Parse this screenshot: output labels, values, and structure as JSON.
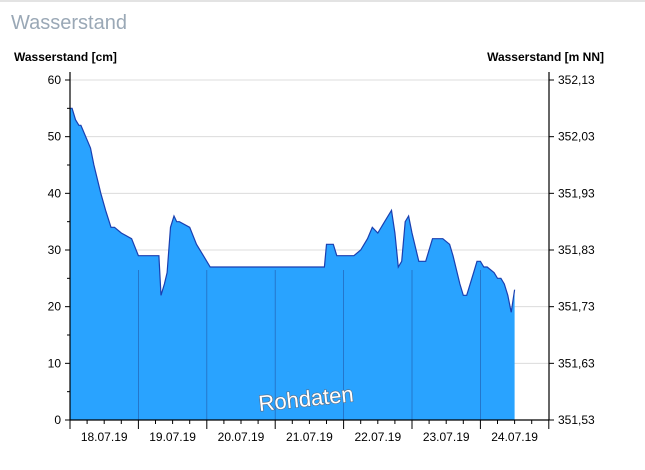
{
  "page": {
    "title": "Wasserstand"
  },
  "chart_data": {
    "type": "area",
    "title": "Wasserstand",
    "ylabel_left": "Wasserstand [cm]",
    "ylabel_right": "Wasserstand [m NN]",
    "annotation": "Rohdaten",
    "ylim_left": [
      0,
      60
    ],
    "yticks_left": [
      0,
      10,
      20,
      30,
      40,
      50,
      60
    ],
    "ylim_right": [
      351.53,
      352.13
    ],
    "yticks_right": [
      "351,53",
      "351,63",
      "351,73",
      "351,83",
      "351,93",
      "352,03",
      "352,13"
    ],
    "xlim_days": [
      0,
      7
    ],
    "xtick_labels": [
      "18.07.19",
      "19.07.19",
      "20.07.19",
      "21.07.19",
      "22.07.19",
      "23.07.19",
      "24.07.19"
    ],
    "grid": true,
    "fill_color": "#29a3ff",
    "line_color": "#1a3fb0",
    "series": [
      {
        "x": [
          0,
          0.03,
          0.08,
          0.13,
          0.16,
          0.3,
          0.35,
          0.45,
          0.52,
          0.6,
          0.65,
          0.75,
          0.9,
          1.0,
          1.05,
          1.3,
          1.33,
          1.38,
          1.42,
          1.47,
          1.52,
          1.56,
          1.6,
          1.75,
          1.85,
          1.95,
          2.05,
          2.1,
          2.2,
          2.3,
          2.5,
          3.0,
          3.5,
          3.72,
          3.75,
          3.85,
          3.9,
          4.0,
          4.15,
          4.25,
          4.35,
          4.42,
          4.5,
          4.6,
          4.7,
          4.75,
          4.8,
          4.85,
          4.9,
          4.95,
          5.0,
          5.1,
          5.2,
          5.3,
          5.45,
          5.55,
          5.6,
          5.7,
          5.75,
          5.8,
          5.9,
          5.95,
          6.0,
          6.05,
          6.1,
          6.2,
          6.25,
          6.3,
          6.35,
          6.4,
          6.45,
          6.5
        ],
        "values": [
          55,
          55,
          53,
          52,
          52,
          48,
          45,
          40,
          37,
          34,
          34,
          33,
          32,
          29,
          29,
          29,
          22,
          24,
          26,
          34,
          36,
          35,
          35,
          34,
          31,
          29,
          27,
          27,
          27,
          27,
          27,
          27,
          27,
          27,
          31,
          31,
          29,
          29,
          29,
          30,
          32,
          34,
          33,
          35,
          37,
          33,
          27,
          28,
          35,
          36,
          33,
          28,
          28,
          32,
          32,
          31,
          29,
          24,
          22,
          22,
          26,
          28,
          28,
          27,
          27,
          26,
          25,
          25,
          24,
          22,
          19,
          23
        ]
      }
    ]
  }
}
